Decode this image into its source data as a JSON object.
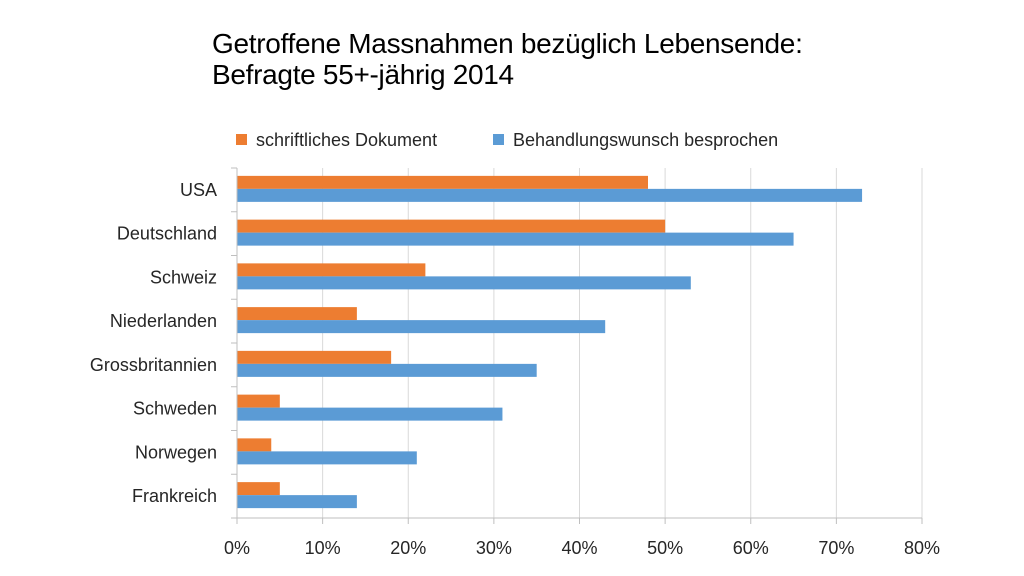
{
  "chart_data": {
    "type": "bar",
    "orientation": "horizontal",
    "title_line1": "Getroffene Massnahmen bezüglich Lebensende:",
    "title_line2": "Befragte 55+-jährig 2014",
    "categories": [
      "USA",
      "Deutschland",
      "Schweiz",
      "Niederlanden",
      "Grossbritannien",
      "Schweden",
      "Norwegen",
      "Frankreich"
    ],
    "series": [
      {
        "name": "schriftliches Dokument",
        "color": "#ED7D31",
        "values": [
          48,
          50,
          22,
          14,
          18,
          5,
          4,
          5
        ]
      },
      {
        "name": "Behandlungswunsch besprochen",
        "color": "#5B9BD5",
        "values": [
          73,
          65,
          53,
          43,
          35,
          31,
          21,
          14
        ]
      }
    ],
    "xlim": [
      0,
      80
    ],
    "xticks": [
      "0%",
      "10%",
      "20%",
      "30%",
      "40%",
      "50%",
      "60%",
      "70%",
      "80%"
    ],
    "grid": true,
    "legend_position": "top",
    "xlabel": "",
    "ylabel": ""
  }
}
